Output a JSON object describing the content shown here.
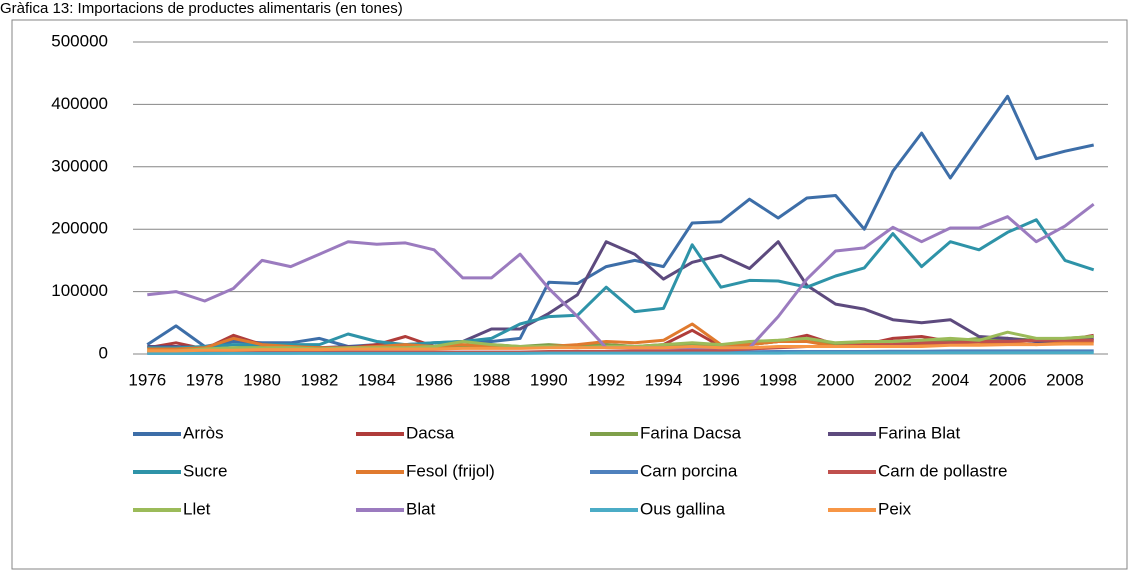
{
  "chart_data": {
    "type": "line",
    "title": "Gràfica 13: Importacions de productes alimentaris (en tones)",
    "categories": [
      "1976",
      null,
      "1978",
      null,
      "1980",
      null,
      "1982",
      null,
      "1984",
      null,
      "1986",
      null,
      "1988",
      null,
      "1990",
      null,
      "1992",
      null,
      "1994",
      null,
      "1996",
      null,
      "1998",
      null,
      "2000",
      null,
      "2002",
      null,
      "2004",
      null,
      "2006",
      null,
      "2008",
      null
    ],
    "ylim": [
      0,
      500000
    ],
    "yticks": [
      0,
      100000,
      200000,
      300000,
      400000,
      500000
    ],
    "grid": true,
    "legend": "bottom",
    "series": [
      {
        "name": "Arròs",
        "color": "#3d6ea8",
        "values": [
          15000,
          45000,
          12000,
          20000,
          18000,
          18000,
          25000,
          12000,
          15000,
          15000,
          18000,
          20000,
          20000,
          25000,
          115000,
          113000,
          140000,
          150000,
          140000,
          210000,
          212000,
          248000,
          218000,
          250000,
          254000,
          200000,
          293000,
          354000,
          282000,
          348000,
          413000,
          313000,
          325000,
          335000
        ]
      },
      {
        "name": "Dacsa",
        "color": "#b03c3a",
        "values": [
          10000,
          18000,
          8000,
          30000,
          15000,
          12000,
          10000,
          10000,
          15000,
          28000,
          12000,
          10000,
          12000,
          10000,
          12000,
          10000,
          15000,
          12000,
          15000,
          38000,
          12000,
          15000,
          20000,
          30000,
          15000,
          15000,
          25000,
          28000,
          20000,
          20000,
          25000,
          20000,
          22000,
          30000
        ]
      },
      {
        "name": "Farina Dacsa",
        "color": "#7fa04a",
        "values": [
          5000,
          5000,
          8000,
          10000,
          12000,
          10000,
          8000,
          10000,
          10000,
          8000,
          10000,
          12000,
          15000,
          12000,
          15000,
          12000,
          15000,
          12000,
          12000,
          15000,
          12000,
          15000,
          20000,
          25000,
          15000,
          20000,
          20000,
          22000,
          20000,
          25000,
          25000,
          22000,
          25000,
          28000
        ]
      },
      {
        "name": "Farina Blat",
        "color": "#5d4a7e",
        "values": [
          12000,
          12000,
          10000,
          25000,
          15000,
          10000,
          10000,
          12000,
          10000,
          10000,
          12000,
          20000,
          40000,
          40000,
          65000,
          95000,
          180000,
          160000,
          120000,
          147000,
          158000,
          137000,
          180000,
          110000,
          80000,
          72000,
          55000,
          50000,
          55000,
          28000,
          25000,
          20000,
          20000,
          25000
        ]
      },
      {
        "name": "Sucre",
        "color": "#2e93a8",
        "values": [
          10000,
          10000,
          12000,
          15000,
          15000,
          15000,
          15000,
          32000,
          20000,
          15000,
          18000,
          20000,
          25000,
          48000,
          60000,
          62000,
          107000,
          68000,
          73000,
          175000,
          107000,
          118000,
          117000,
          107000,
          125000,
          138000,
          193000,
          140000,
          180000,
          167000,
          195000,
          215000,
          150000,
          135000
        ]
      },
      {
        "name": "Fesol (frijol)",
        "color": "#e07a2e",
        "values": [
          8000,
          8000,
          10000,
          25000,
          15000,
          12000,
          10000,
          10000,
          12000,
          15000,
          12000,
          15000,
          12000,
          12000,
          12000,
          15000,
          20000,
          18000,
          22000,
          48000,
          15000,
          15000,
          20000,
          20000,
          12000,
          15000,
          18000,
          15000,
          15000,
          15000,
          18000,
          15000,
          18000,
          20000
        ]
      },
      {
        "name": "Carn porcina",
        "color": "#4f81bd",
        "values": [
          1000,
          1000,
          1000,
          1500,
          1500,
          1500,
          2000,
          2000,
          2000,
          2000,
          2000,
          2500,
          2500,
          2500,
          3000,
          3000,
          3000,
          3000,
          3000,
          3500,
          3500,
          3500,
          4000,
          4000,
          4000,
          4000,
          4500,
          4500,
          5000,
          5000,
          5000,
          5000,
          5000,
          5000
        ]
      },
      {
        "name": "Carn de pollastre",
        "color": "#c0504d",
        "values": [
          2000,
          2000,
          2000,
          3000,
          3000,
          3000,
          3000,
          3000,
          3000,
          3000,
          3000,
          3000,
          3000,
          3000,
          4000,
          4000,
          4000,
          5000,
          5000,
          6000,
          6000,
          8000,
          10000,
          12000,
          12000,
          14000,
          15000,
          18000,
          18000,
          20000,
          20000,
          22000,
          22000,
          22000
        ]
      },
      {
        "name": "Llet",
        "color": "#9bbb59",
        "values": [
          5000,
          5000,
          8000,
          10000,
          10000,
          10000,
          8000,
          10000,
          10000,
          10000,
          12000,
          20000,
          15000,
          12000,
          12000,
          10000,
          12000,
          12000,
          15000,
          18000,
          15000,
          20000,
          22000,
          25000,
          18000,
          20000,
          20000,
          22000,
          25000,
          22000,
          35000,
          25000,
          25000,
          28000
        ]
      },
      {
        "name": "Blat",
        "color": "#9b7bbf",
        "values": [
          95000,
          100000,
          85000,
          105000,
          150000,
          140000,
          160000,
          180000,
          176000,
          178000,
          167000,
          122000,
          122000,
          160000,
          105000,
          60000,
          10000,
          10000,
          10000,
          10000,
          10000,
          10000,
          60000,
          120000,
          165000,
          170000,
          203000,
          180000,
          202000,
          202000,
          220000,
          180000,
          205000,
          240000
        ]
      },
      {
        "name": "Ous gallina",
        "color": "#4bacc6",
        "values": [
          1000,
          1000,
          1000,
          1000,
          1000,
          1000,
          1000,
          1000,
          1000,
          1000,
          1000,
          1000,
          1000,
          1000,
          1500,
          1500,
          1500,
          1500,
          1500,
          1500,
          1500,
          1500,
          1500,
          2000,
          2000,
          2000,
          2000,
          2000,
          2000,
          2000,
          2000,
          2000,
          2000,
          2000
        ]
      },
      {
        "name": "Peix",
        "color": "#f79646",
        "values": [
          5000,
          5000,
          6000,
          6000,
          7000,
          7000,
          7000,
          8000,
          8000,
          8000,
          8000,
          9000,
          9000,
          9000,
          10000,
          10000,
          10000,
          10000,
          10000,
          12000,
          10000,
          10000,
          12000,
          12000,
          12000,
          12000,
          12000,
          12000,
          14000,
          14000,
          15000,
          15000,
          16000,
          16000
        ]
      }
    ]
  }
}
